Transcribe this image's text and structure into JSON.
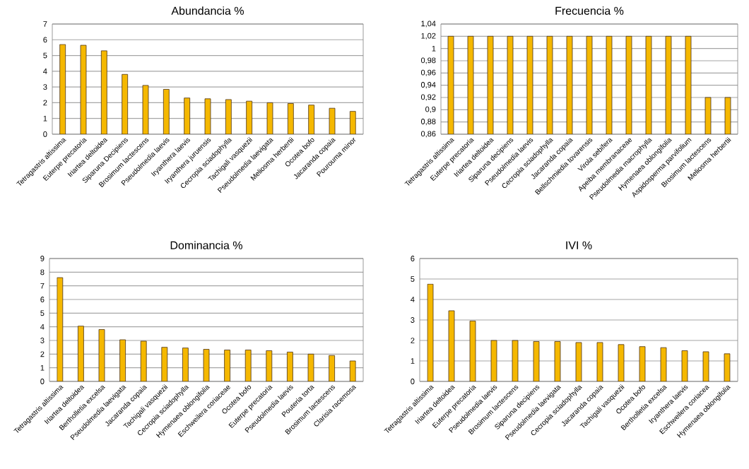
{
  "chart_data": [
    {
      "type": "bar",
      "title": "Abundancia %",
      "color": "#f5b800",
      "grid": "y",
      "ylim": [
        0,
        7
      ],
      "yticks": [
        0,
        1,
        2,
        3,
        4,
        5,
        6,
        7
      ],
      "categories": [
        "Tetragastris altissima",
        "Euterpe precatoria",
        "Iriartea deltoidea",
        "Siparuna Decipiens",
        "Brosimum lactescens",
        "Pseudolmedia laevis",
        "Iryanthera laevis",
        "Iryanthera juruensis",
        "Cecropia sciadophylla",
        "Tachigali vasquezii",
        "Pseudolmedia laevigata",
        "Meliosma herbertii",
        "Ocotea bofo",
        "Jacaranda copaia",
        "Pourouma minor"
      ],
      "values": [
        5.7,
        5.65,
        5.3,
        3.8,
        3.1,
        2.85,
        2.3,
        2.25,
        2.2,
        2.1,
        2.0,
        1.95,
        1.85,
        1.65,
        1.45
      ]
    },
    {
      "type": "bar",
      "title": "Frecuencia %",
      "color": "#f5b800",
      "grid": "y",
      "ylim": [
        0.86,
        1.04
      ],
      "yticks": [
        {
          "value": 0.86,
          "label": "0,86"
        },
        {
          "value": 0.88,
          "label": "0,88"
        },
        {
          "value": 0.9,
          "label": "0,9"
        },
        {
          "value": 0.92,
          "label": "0,92"
        },
        {
          "value": 0.94,
          "label": "0,94"
        },
        {
          "value": 0.96,
          "label": "0,96"
        },
        {
          "value": 0.98,
          "label": "0,98"
        },
        1,
        {
          "value": 1.02,
          "label": "1,02"
        },
        {
          "value": 1.04,
          "label": "1,04"
        }
      ],
      "categories": [
        "Tetragastris altissima",
        "Euterpe precatoria",
        "Iriartea deltoidea",
        "Siparuna decipiens",
        "Pseudolmedia laevis",
        "Cecropia sciadophylla",
        "Jacaranda copaia",
        "Bellschmiedia tovarensis",
        "Virola sebifera",
        "Apeiba membranaceae",
        "Pseudolmedia macrophylla",
        "Hymenaea oblongifolia",
        "Aspidosperma parvifolium",
        "Brosimum lactescens",
        "Meliosma herbertii"
      ],
      "values": [
        1.02,
        1.02,
        1.02,
        1.02,
        1.02,
        1.02,
        1.02,
        1.02,
        1.02,
        1.02,
        1.02,
        1.02,
        1.02,
        0.92,
        0.92
      ]
    },
    {
      "type": "bar",
      "title": "Dominancia %",
      "color": "#f5b800",
      "grid": "y",
      "ylim": [
        0,
        9
      ],
      "yticks": [
        0,
        1,
        2,
        3,
        4,
        5,
        6,
        7,
        8,
        9
      ],
      "categories": [
        "Tetragastris altissima",
        "Iriartea deltoidea",
        "Bertholletia excelsa",
        "Pseudolmedia laevigata",
        "Jacaranda copaia",
        "Tachigali vasquezii",
        "Cecropia sciadophylla",
        "Hymenaea oblongifolia",
        "Eschweilera coriaceae",
        "Ocotea bofo",
        "Euterpe precatoria",
        "Pseudolmedia laevis",
        "Pouteria torta",
        "Brosimum lactescens",
        "Clarisia racemosa"
      ],
      "values": [
        7.6,
        4.05,
        3.8,
        3.05,
        2.95,
        2.5,
        2.45,
        2.35,
        2.3,
        2.3,
        2.25,
        2.15,
        2.0,
        1.9,
        1.5
      ]
    },
    {
      "type": "bar",
      "title": "IVI %",
      "color": "#f5b800",
      "grid": "y",
      "ylim": [
        0,
        6
      ],
      "yticks": [
        0,
        1,
        2,
        3,
        4,
        5,
        6
      ],
      "categories": [
        "Tetragastris altissima",
        "Iriartea deltoidea",
        "Euterpe precatoria",
        "Pseudolmedia laevis",
        "Brosimum lactescens",
        "Siparuna decipiens",
        "Pseudolmedia laevigata",
        "Cecropia sciadophylla",
        "Jacaranda copaia",
        "Tachigali vasquezii",
        "Ocotea bofo",
        "Bertholletia excelsa",
        "Iryanthera laevis",
        "Eschweilera coriacea",
        "Hymenaea oblongifolia"
      ],
      "values": [
        4.75,
        3.45,
        2.95,
        2.0,
        2.0,
        1.95,
        1.95,
        1.9,
        1.9,
        1.8,
        1.7,
        1.65,
        1.5,
        1.45,
        1.35
      ]
    }
  ]
}
